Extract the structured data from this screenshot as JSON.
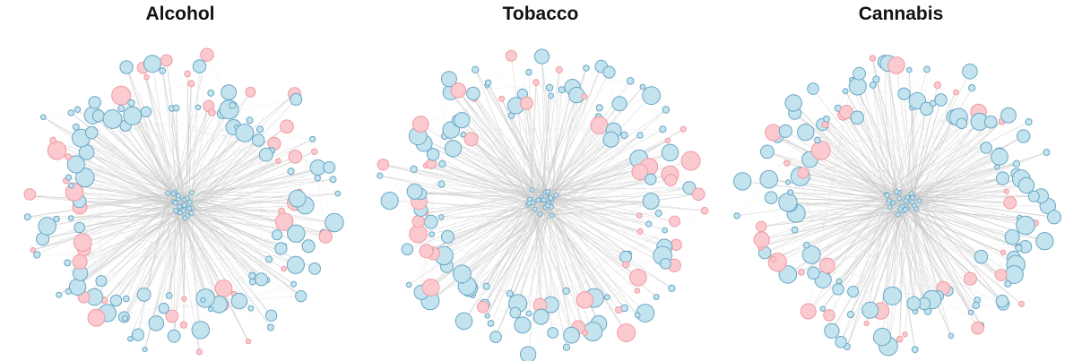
{
  "panels": [
    {
      "title": "Alcohol"
    },
    {
      "title": "Tobacco"
    },
    {
      "title": "Cannabis"
    }
  ],
  "colors": {
    "blue_fill": "#c3e4ef",
    "blue_stroke": "#6aa6c4",
    "pink_fill": "#fbcacf",
    "pink_stroke": "#ef9aa3",
    "edge": "#c9c9c9"
  }
}
